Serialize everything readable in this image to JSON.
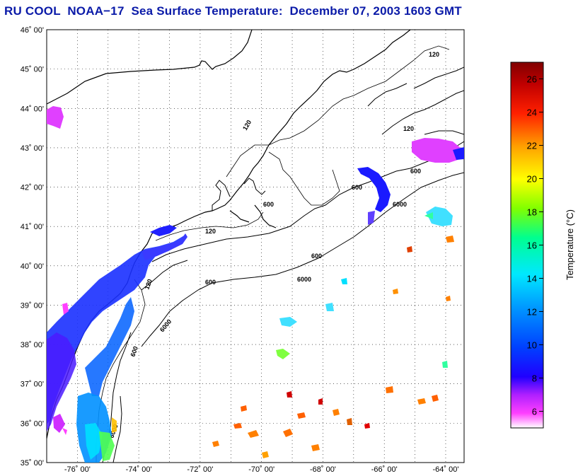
{
  "title": "RU COOL  NOAA−17  Sea Surface Temperature:  December 07, 2003 1603 GMT",
  "map": {
    "lat_labels": [
      "46˚ 00'",
      "45˚ 00'",
      "44˚ 00'",
      "43˚ 00'",
      "42˚ 00'",
      "41˚ 00'",
      "40˚ 00'",
      "39˚ 00'",
      "38˚ 00'",
      "37˚ 00'",
      "36˚ 00'",
      "35˚ 00'"
    ],
    "lon_labels": [
      "-76˚ 00'",
      "-74˚ 00'",
      "-72˚ 00'",
      "-70˚ 00'",
      "-68˚ 00'",
      "-66˚ 00'",
      "-64˚ 00'"
    ],
    "lat_range": [
      35,
      46
    ],
    "lon_range": [
      -77,
      -63.4
    ],
    "grid": "dotted",
    "depth_contour_labels": [
      "120",
      "600",
      "6000"
    ]
  },
  "colorbar": {
    "title": "Temperature (°C)",
    "ticks": [
      "6",
      "8",
      "10",
      "12",
      "14",
      "16",
      "18",
      "20",
      "22",
      "24",
      "26"
    ],
    "range": [
      5,
      27
    ],
    "colors": [
      "#ffffff",
      "#ff40ff",
      "#a000ff",
      "#0000ff",
      "#0080ff",
      "#00e0ff",
      "#00ff80",
      "#80ff00",
      "#ffff00",
      "#ffa000",
      "#ff3000",
      "#c00000",
      "#800000"
    ]
  }
}
